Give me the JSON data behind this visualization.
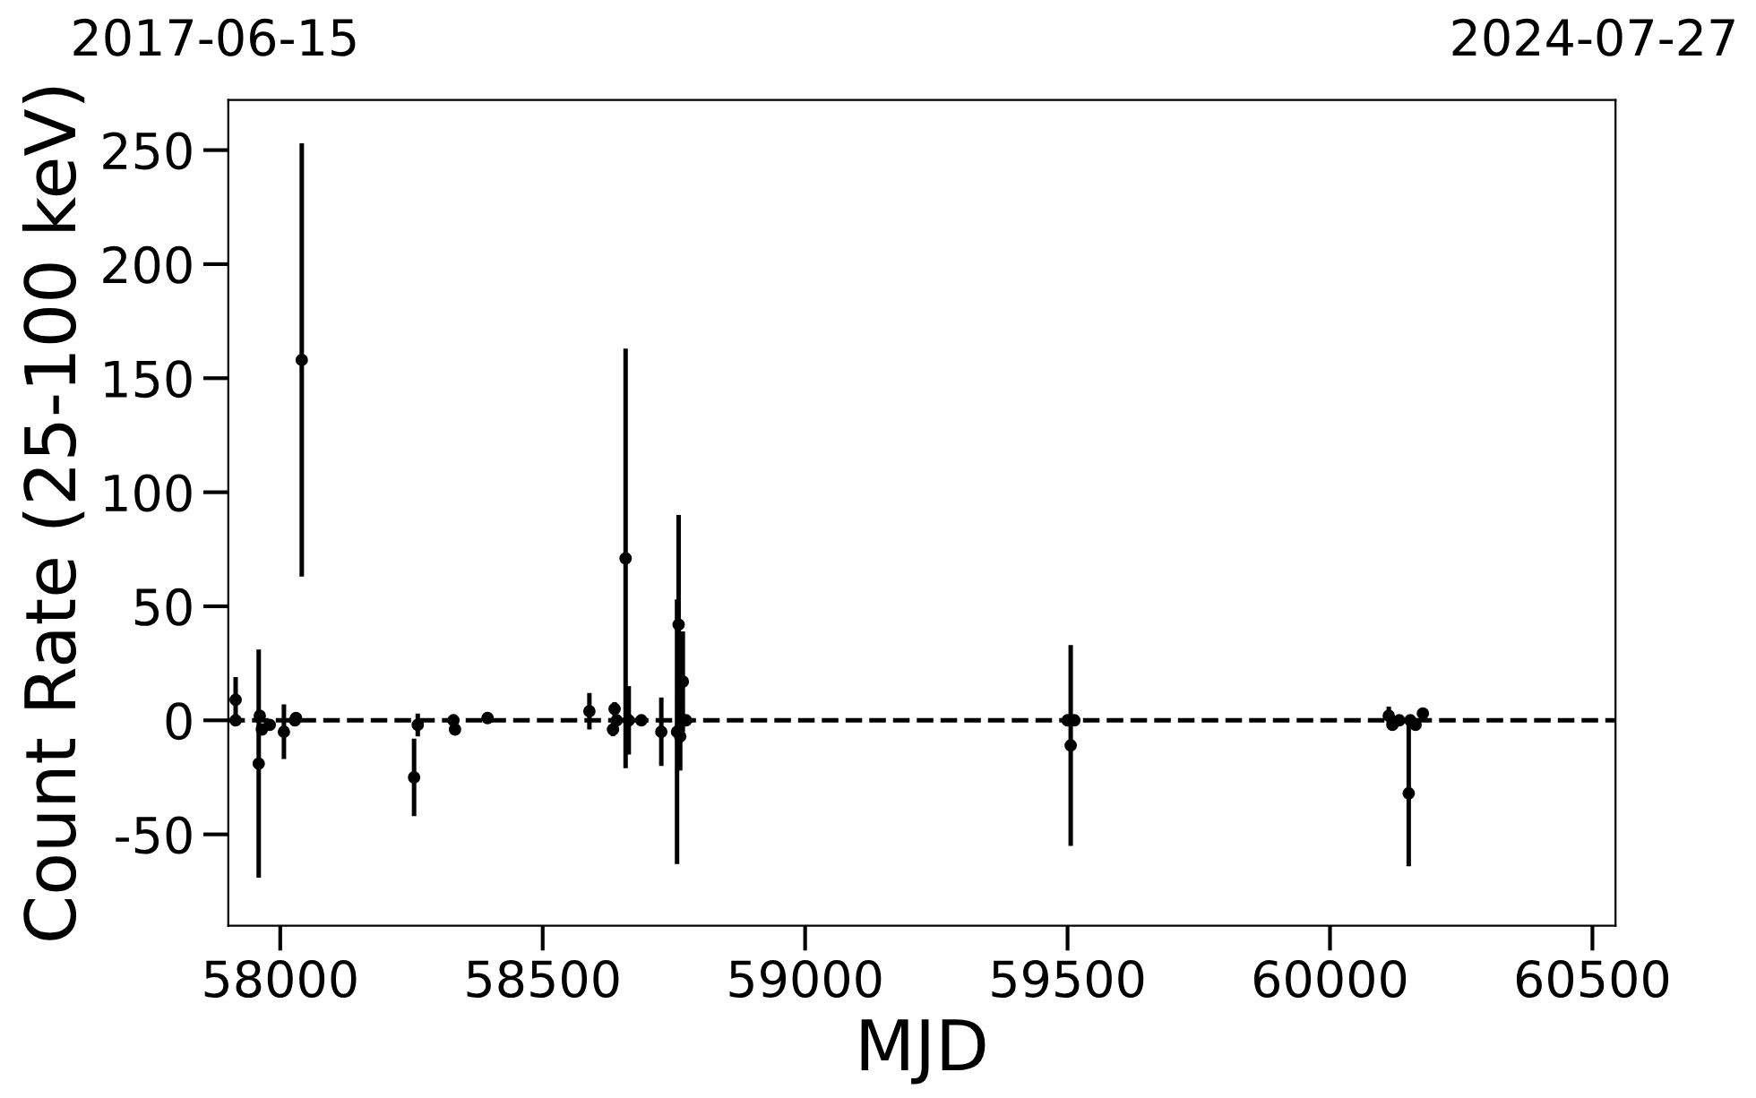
{
  "chart_data": {
    "type": "scatter",
    "xlabel": "MJD",
    "ylabel": "Count Rate (25-100 keV)",
    "annotations": [
      "2017-06-15",
      "2024-07-27"
    ],
    "x": [
      57915,
      57915,
      57959,
      57961,
      57965,
      57980,
      58007,
      58028,
      58030,
      58041,
      58255,
      58262,
      58330,
      58333,
      58395,
      58589,
      58634,
      58637,
      58641,
      58658,
      58664,
      58688,
      58726,
      58756,
      58759,
      58762,
      58767,
      58773,
      59500,
      59506,
      59513,
      60112,
      60119,
      60132,
      60150,
      60153,
      60163,
      60177
    ],
    "values": [
      9,
      0,
      -19,
      2,
      -4,
      -2,
      -5,
      0,
      1,
      158,
      -25,
      -2,
      0,
      -4,
      1,
      4,
      -4,
      5,
      0,
      71,
      0,
      0,
      -5,
      -5,
      42,
      -7,
      17,
      0,
      0,
      -11,
      0,
      2,
      -2,
      0,
      -32,
      0,
      -2,
      3
    ],
    "errors": [
      10,
      2,
      50,
      2,
      2,
      2,
      12,
      2,
      2,
      95,
      17,
      5,
      2,
      2,
      2,
      8,
      3,
      3,
      2,
      92,
      15,
      2,
      15,
      58,
      48,
      15,
      22,
      2,
      2,
      44,
      2,
      4,
      2,
      2,
      32,
      2,
      2,
      2
    ],
    "color": "#000000",
    "marker": "circle",
    "ref_lines": [
      {
        "axis": "y",
        "value": 0,
        "color": "#000000",
        "line_style": "dashed"
      }
    ],
    "xlim": [
      57901,
      60544
    ],
    "ylim": [
      -90,
      272
    ],
    "xticks": [
      58000,
      58500,
      59000,
      59500,
      60000,
      60500
    ],
    "yticks": [
      -50,
      0,
      50,
      100,
      150,
      200,
      250
    ],
    "grid": false
  }
}
